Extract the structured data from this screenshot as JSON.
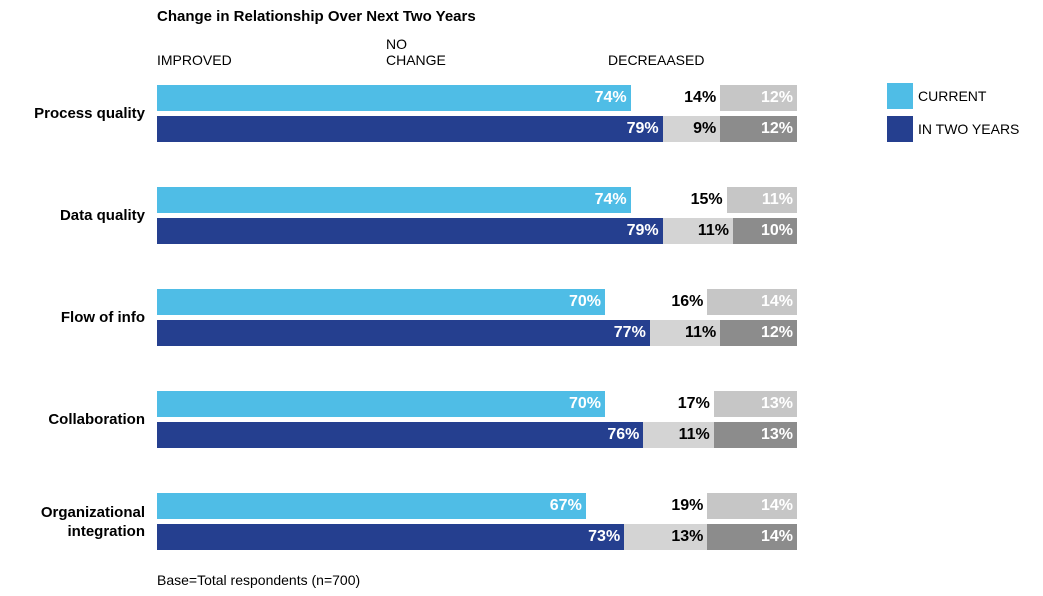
{
  "chart_data": {
    "type": "stacked_bar",
    "title": "Change in Relationship Over Next Two Years",
    "segments": [
      "IMPROVED",
      "NO CHANGE",
      "DECREAASED"
    ],
    "categories": [
      "Process quality",
      "Data quality",
      "Flow of info",
      "Collaboration",
      "Organizational integration"
    ],
    "xlim": [
      0,
      100
    ],
    "series": [
      {
        "name": "CURRENT",
        "color": "#4fbde6",
        "segment_colors": [
          "#4fbde6",
          "#ffffff",
          "#c6c6c6"
        ],
        "label_colors": [
          "#ffffff",
          "#000000",
          "#ffffff"
        ],
        "values": [
          [
            74,
            14,
            12
          ],
          [
            74,
            15,
            11
          ],
          [
            70,
            16,
            14
          ],
          [
            70,
            17,
            13
          ],
          [
            67,
            19,
            14
          ]
        ],
        "value_labels": [
          [
            "74%",
            "14%",
            "12%"
          ],
          [
            "74%",
            "15%",
            "11%"
          ],
          [
            "70%",
            "16%",
            "14%"
          ],
          [
            "70%",
            "17%",
            "13%"
          ],
          [
            "67%",
            "19%",
            "14%"
          ]
        ]
      },
      {
        "name": "IN TWO YEARS",
        "color": "#253f8f",
        "segment_colors": [
          "#253f8f",
          "#d4d4d4",
          "#8c8c8c"
        ],
        "label_colors": [
          "#ffffff",
          "#000000",
          "#ffffff"
        ],
        "values": [
          [
            79,
            9,
            12
          ],
          [
            79,
            11,
            10
          ],
          [
            77,
            11,
            12
          ],
          [
            76,
            11,
            13
          ],
          [
            73,
            13,
            14
          ]
        ],
        "value_labels": [
          [
            "79%",
            "9%",
            "12%"
          ],
          [
            "79%",
            "11%",
            "10%"
          ],
          [
            "77%",
            "11%",
            "12%"
          ],
          [
            "76%",
            "11%",
            "13%"
          ],
          [
            "73%",
            "13%",
            "14%"
          ]
        ]
      }
    ],
    "note": "Base=Total respondents (n=700)"
  }
}
